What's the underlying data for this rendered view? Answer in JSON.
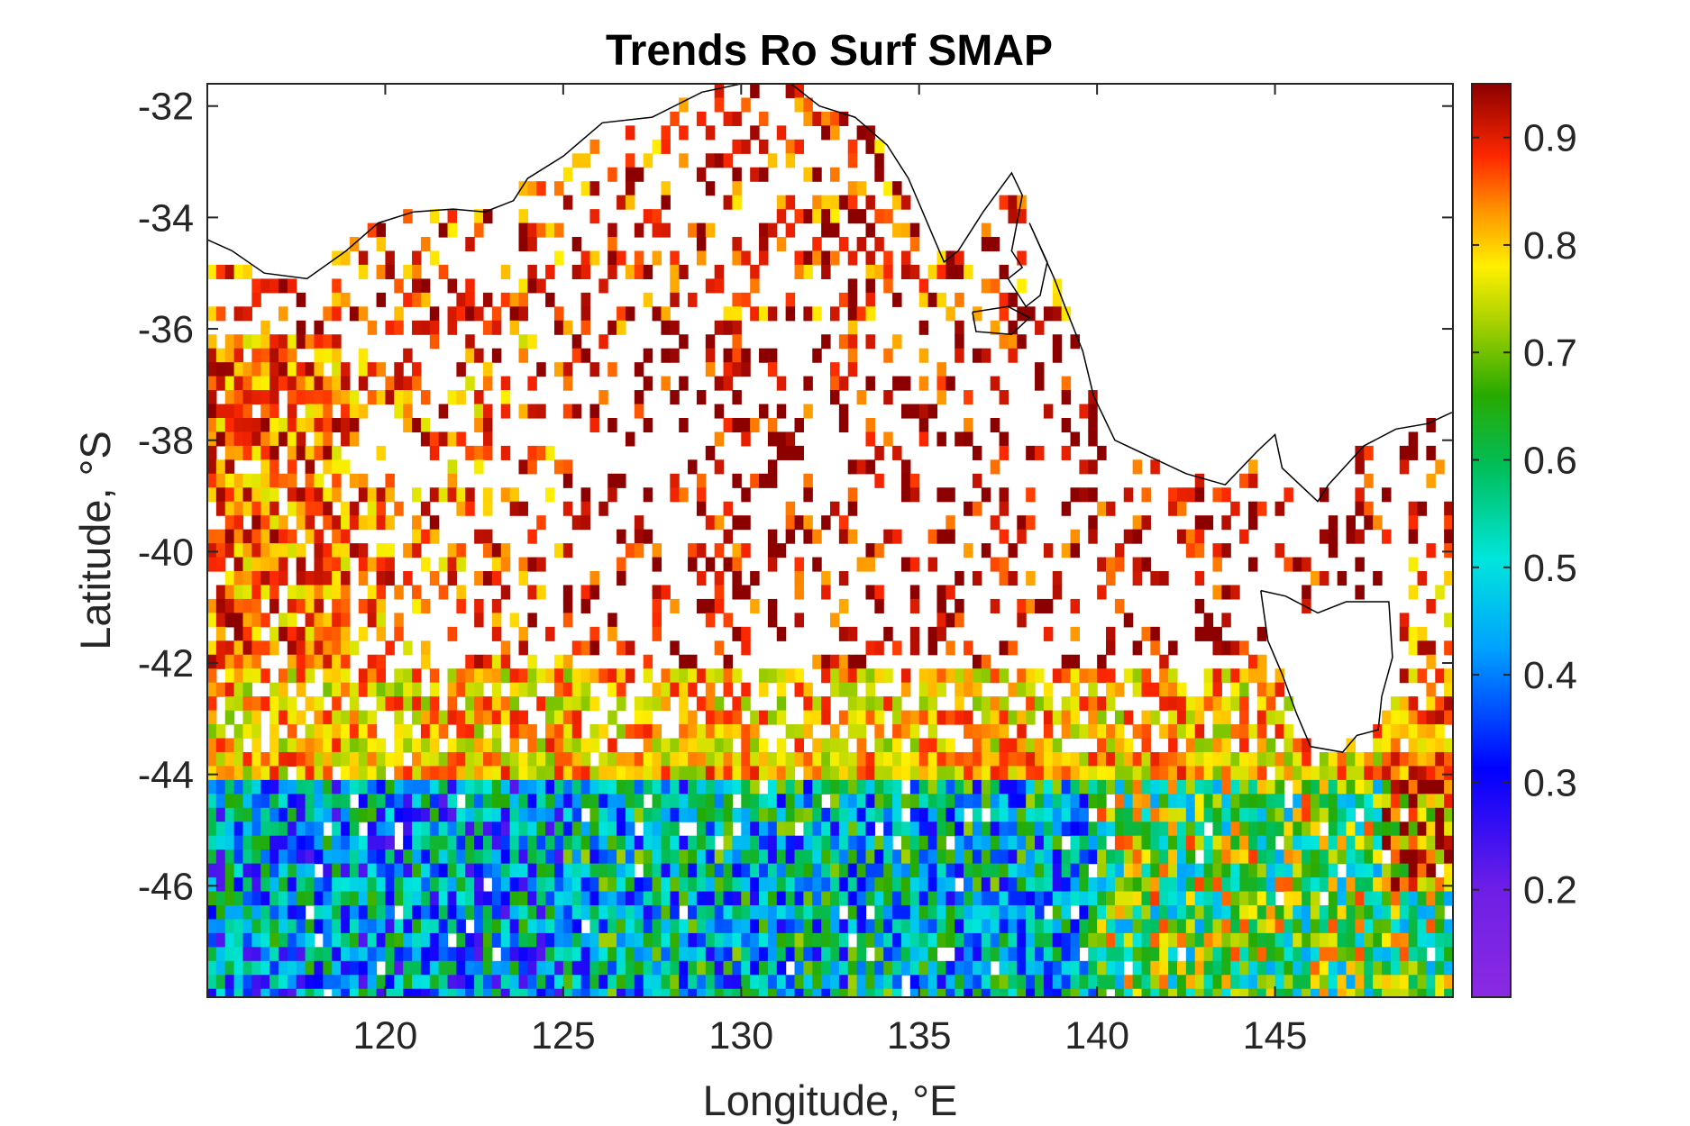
{
  "chart_data": {
    "type": "heatmap",
    "title": "Trends Ro Surf SMAP",
    "xlabel": "Longitude, °E",
    "ylabel": "Latitude, °S",
    "xlim": [
      115,
      150
    ],
    "ylim": [
      -48,
      -31.6
    ],
    "xticks": [
      120,
      125,
      130,
      135,
      140,
      145
    ],
    "xtick_labels": [
      "120",
      "125",
      "130",
      "135",
      "140",
      "145"
    ],
    "yticks": [
      -32,
      -34,
      -36,
      -38,
      -40,
      -42,
      -44,
      -46
    ],
    "ytick_labels": [
      "-32",
      "-34",
      "-36",
      "-38",
      "-40",
      "-42",
      "-44",
      "-46"
    ],
    "colorbar": {
      "range": [
        0.1,
        0.95
      ],
      "ticks": [
        0.2,
        0.3,
        0.4,
        0.5,
        0.6,
        0.7,
        0.8,
        0.9
      ],
      "tick_labels": [
        "0.2",
        "0.3",
        "0.4",
        "0.5",
        "0.6",
        "0.7",
        "0.8",
        "0.9"
      ],
      "colormap": "jet-like (violet → blue → cyan → green → yellow → orange → red → dark red)"
    },
    "grid": false,
    "legend": "colorbar-right",
    "grid_cell_size_deg": 0.25,
    "region_means": [
      {
        "region": "lat -32 to -36, 115–138°E (sparse cells)",
        "value": 0.88
      },
      {
        "region": "lat -36 to -42, 115–125°E",
        "value": 0.85
      },
      {
        "region": "lat -36 to -42, 125–140°E (sparse cells)",
        "value": 0.92
      },
      {
        "region": "lat -42 to -44, 115–140°E",
        "value": 0.8
      },
      {
        "region": "lat -44 to -48, 115–125°E",
        "value": 0.45
      },
      {
        "region": "lat -44 to -48, 125–140°E",
        "value": 0.5
      },
      {
        "region": "lat -44 to -48, 140–150°E",
        "value": 0.65
      },
      {
        "region": "lat -40 to -46, 148–150°E",
        "value": 0.85
      }
    ]
  },
  "colors": {
    "axes": "#262626",
    "coastline": "#000000",
    "background": "#ffffff"
  }
}
